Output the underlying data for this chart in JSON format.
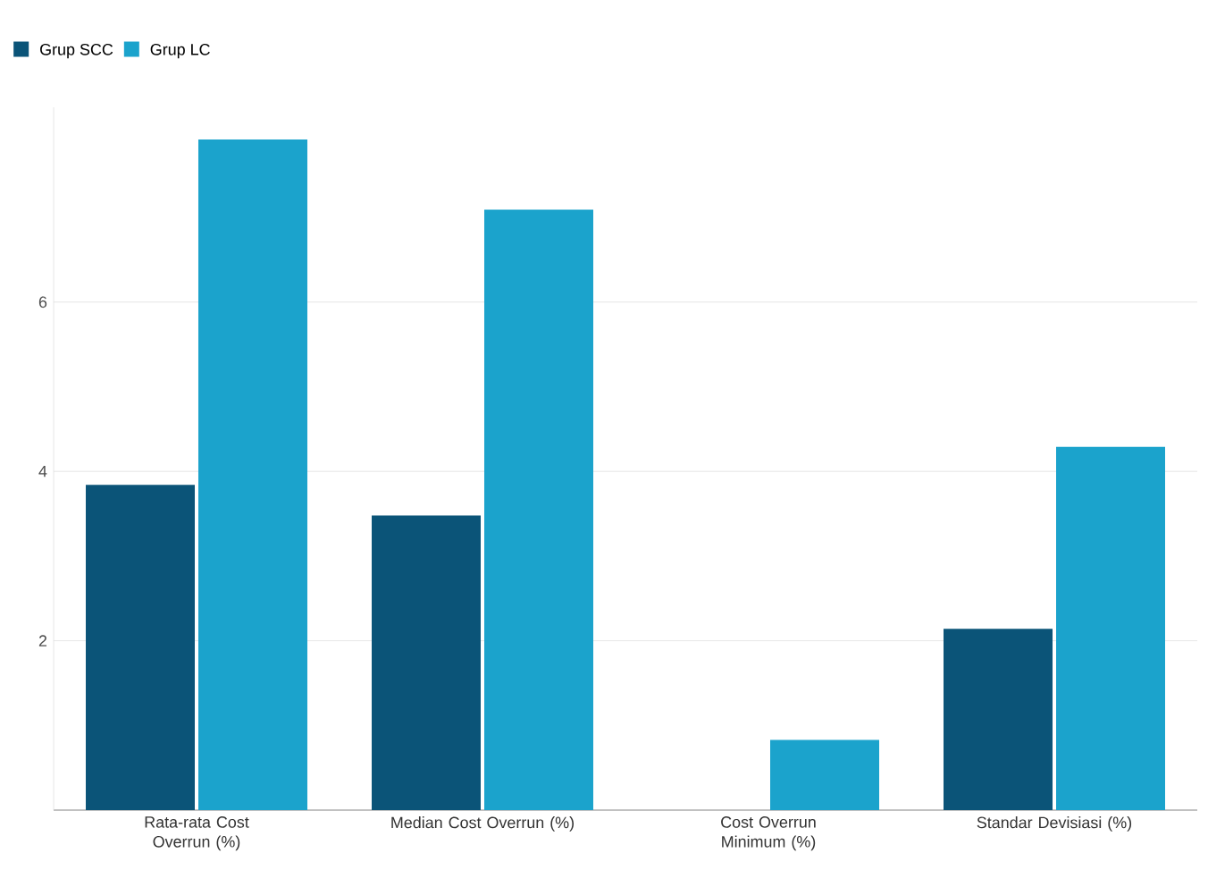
{
  "chart_data": {
    "type": "bar",
    "categories": [
      "Rata-rata Cost Overrun (%)",
      "Median Cost Overrun (%)",
      "Cost Overrun Minimum (%)",
      "Standar Devisiasi (%)"
    ],
    "series": [
      {
        "name": "Grup SCC",
        "color": "#0b5478",
        "values": [
          3.84,
          3.48,
          0,
          2.14
        ]
      },
      {
        "name": "Grup LC",
        "color": "#1ba3cc",
        "values": [
          7.92,
          7.09,
          0.83,
          4.29
        ]
      }
    ],
    "ylim": [
      0,
      8.3
    ],
    "yticks": [
      2,
      4,
      6
    ],
    "grid": "y",
    "legend": "top left"
  }
}
